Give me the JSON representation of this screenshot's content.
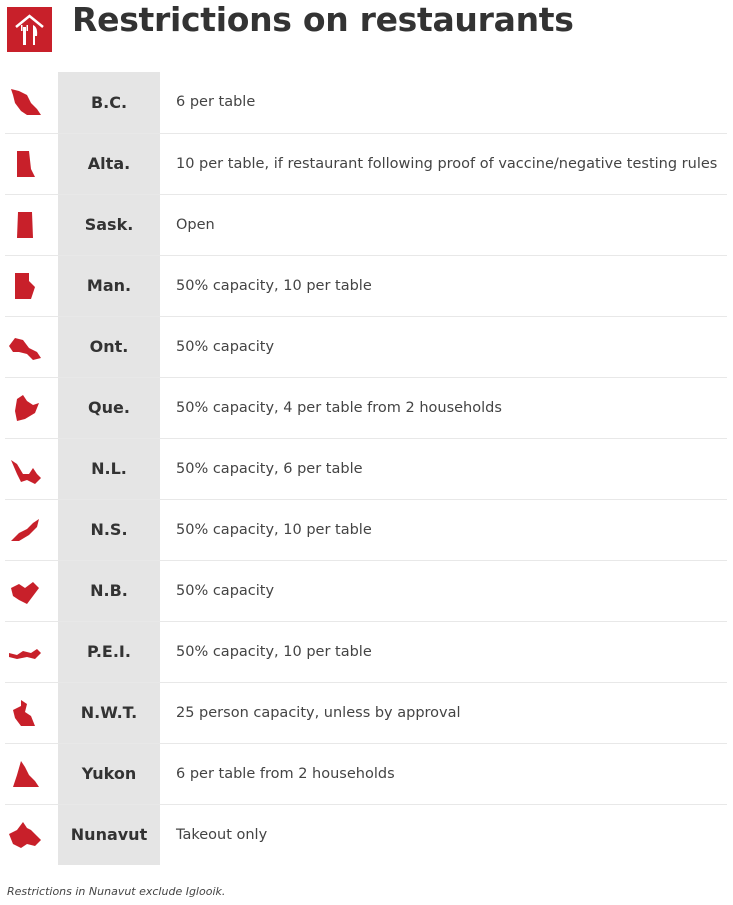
{
  "header": {
    "title": "Restrictions on restaurants",
    "logo_icon": "restaurant-icon"
  },
  "accent": "#c8202a",
  "rows": [
    {
      "province": "B.C.",
      "restriction": "6 per table",
      "icon": "bc-map-icon"
    },
    {
      "province": "Alta.",
      "restriction": "10 per table, if restaurant following proof of vaccine/negative testing rules",
      "icon": "alberta-map-icon"
    },
    {
      "province": "Sask.",
      "restriction": "Open",
      "icon": "saskatchewan-map-icon"
    },
    {
      "province": "Man.",
      "restriction": "50% capacity, 10 per table",
      "icon": "manitoba-map-icon"
    },
    {
      "province": "Ont.",
      "restriction": "50% capacity",
      "icon": "ontario-map-icon"
    },
    {
      "province": "Que.",
      "restriction": "50% capacity, 4 per table from 2 households",
      "icon": "quebec-map-icon"
    },
    {
      "province": "N.L.",
      "restriction": "50% capacity, 6 per table",
      "icon": "newfoundland-map-icon"
    },
    {
      "province": "N.S.",
      "restriction": "50% capacity, 10 per table",
      "icon": "nova-scotia-map-icon"
    },
    {
      "province": "N.B.",
      "restriction": "50% capacity",
      "icon": "new-brunswick-map-icon"
    },
    {
      "province": "P.E.I.",
      "restriction": "50% capacity, 10 per table",
      "icon": "pei-map-icon"
    },
    {
      "province": "N.W.T.",
      "restriction": "25 person capacity, unless by approval",
      "icon": "nwt-map-icon"
    },
    {
      "province": "Yukon",
      "restriction": "6 per table from 2 households",
      "icon": "yukon-map-icon"
    },
    {
      "province": "Nunavut",
      "restriction": "Takeout only",
      "icon": "nunavut-map-icon"
    }
  ],
  "footnote": "Restrictions in Nunavut exclude Iglooik."
}
